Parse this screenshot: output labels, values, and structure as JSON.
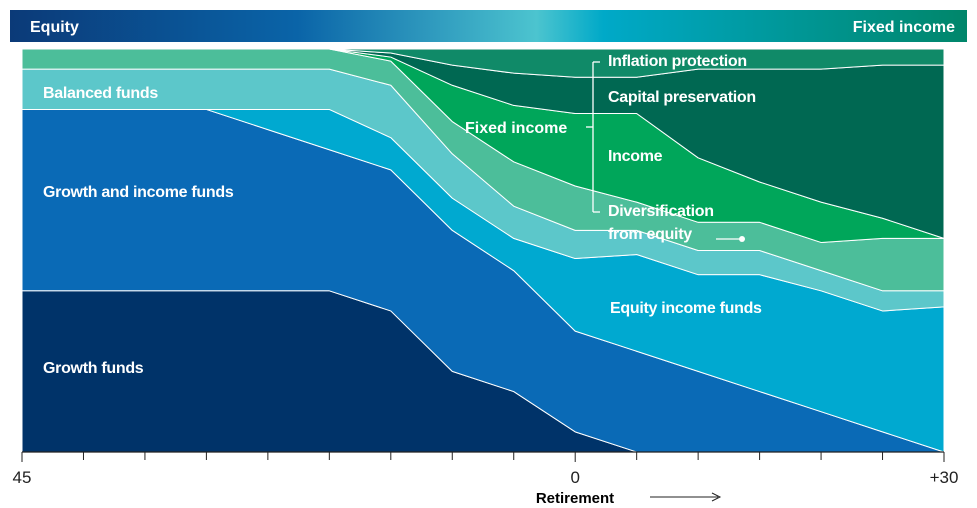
{
  "top_bar": {
    "left": "Equity",
    "right": "Fixed income"
  },
  "chart_data": {
    "type": "stacked_area",
    "x": [
      -45,
      -40,
      -35,
      -30,
      -25,
      -20,
      -15,
      -10,
      -5,
      0,
      5,
      10,
      15,
      20,
      25,
      30
    ],
    "xlim": [
      -45,
      30
    ],
    "xticks": [
      {
        "value": -45,
        "label": "45"
      },
      0,
      {
        "value": 30,
        "label": "+30"
      }
    ],
    "minor_xticks": [
      -40,
      -35,
      -30,
      -25,
      -20,
      -15,
      -10,
      -5,
      5,
      10,
      15,
      20,
      25
    ],
    "ylim": [
      0,
      100
    ],
    "xlabel": "Retirement",
    "bracket_label": "Fixed income",
    "series": [
      {
        "name": "Growth funds",
        "color": "#003369",
        "values": [
          40,
          40,
          40,
          40,
          40,
          40,
          35,
          20,
          15,
          5,
          0,
          0,
          0,
          0,
          0,
          0
        ]
      },
      {
        "name": "Growth and income funds",
        "color": "#0a6ab6",
        "values": [
          45,
          45,
          45,
          45,
          40,
          35,
          35,
          35,
          30,
          25,
          25,
          20,
          15,
          10,
          5,
          0
        ]
      },
      {
        "name": "Equity income funds",
        "color": "#00a9d0",
        "values": [
          0,
          0,
          0,
          0,
          5,
          10,
          8,
          8,
          8,
          18,
          24,
          24,
          29,
          30,
          30,
          36
        ]
      },
      {
        "name": "Balanced funds",
        "color": "#5cc7ca",
        "values": [
          10,
          10,
          10,
          10,
          10,
          10,
          13,
          11,
          8,
          7,
          6,
          6,
          6,
          5,
          5,
          4
        ]
      },
      {
        "name": "Diversification from equity",
        "color": "#4cbe9a",
        "values": [
          5,
          5,
          5,
          5,
          5,
          5,
          6,
          8,
          11,
          11,
          7,
          7,
          7,
          7,
          13,
          13
        ]
      },
      {
        "name": "Income",
        "color": "#00a65a",
        "values": [
          0,
          0,
          0,
          0,
          0,
          0,
          1,
          9,
          14,
          18,
          22,
          16,
          10,
          10,
          5,
          0
        ]
      },
      {
        "name": "Capital preservation",
        "color": "#006852",
        "values": [
          0,
          0,
          0,
          0,
          0,
          0,
          1,
          5,
          8,
          9,
          9,
          22,
          28,
          33,
          38,
          43
        ]
      },
      {
        "name": "Inflation protection",
        "color": "#108a68",
        "values": [
          0,
          0,
          0,
          0,
          0,
          0,
          1,
          4,
          6,
          7,
          7,
          5,
          5,
          5,
          4,
          4
        ]
      }
    ]
  }
}
